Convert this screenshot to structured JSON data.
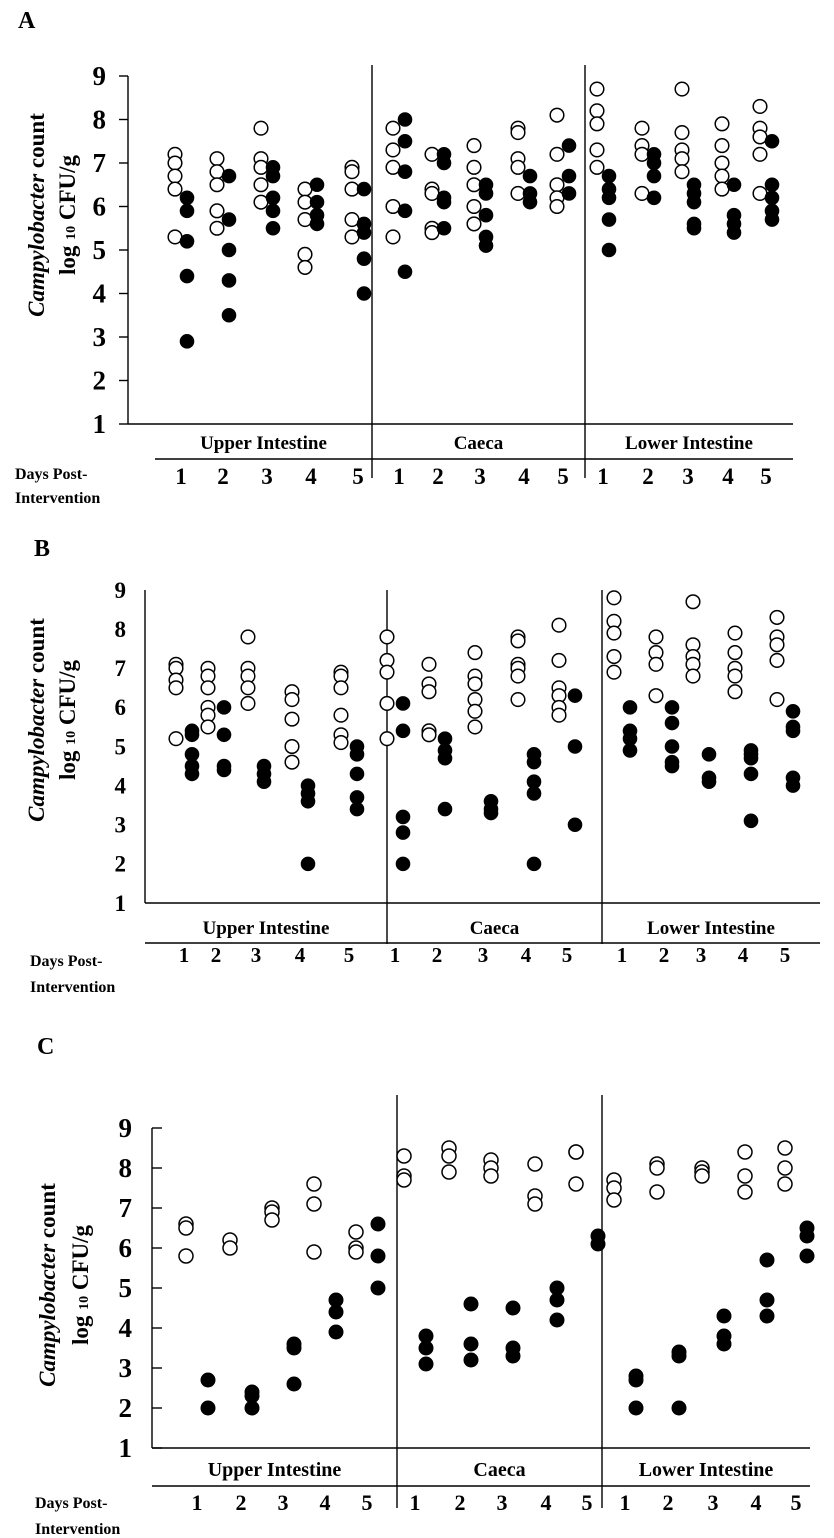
{
  "chart_data": [
    {
      "type": "scatter",
      "panel_label": "A",
      "ylabel_italic": "Campylobacter",
      "ylabel_suffix": " count",
      "ylabel_line2_a": "log",
      "ylabel_line2_sub": "10",
      "ylabel_line2_b": " CFU/g",
      "y_ticks": [
        1,
        2,
        3,
        4,
        5,
        6,
        7,
        8,
        9
      ],
      "ylim": [
        1,
        9
      ],
      "x_title_line1": "Days Post-",
      "x_title_line2": "Intervention",
      "day_labels": [
        "1",
        "2",
        "3",
        "4",
        "5"
      ],
      "groups": [
        {
          "name": "Upper Intestine",
          "days": [
            {
              "open": [
                7.2,
                7.0,
                6.7,
                6.4,
                5.3
              ],
              "filled": [
                6.2,
                5.9,
                5.2,
                4.4,
                2.9
              ]
            },
            {
              "open": [
                7.1,
                6.8,
                6.5,
                5.9,
                5.5
              ],
              "filled": [
                6.7,
                5.7,
                5.0,
                4.3,
                3.5
              ]
            },
            {
              "open": [
                7.8,
                7.1,
                6.9,
                6.5,
                6.1
              ],
              "filled": [
                6.9,
                6.7,
                6.2,
                5.9,
                5.5
              ]
            },
            {
              "open": [
                6.4,
                6.1,
                5.7,
                4.9,
                4.6
              ],
              "filled": [
                6.5,
                6.1,
                5.8,
                5.6
              ]
            },
            {
              "open": [
                6.9,
                6.8,
                6.4,
                5.7,
                5.3
              ],
              "filled": [
                6.4,
                5.6,
                5.4,
                4.8,
                4.0
              ]
            }
          ]
        },
        {
          "name": "Caeca",
          "days": [
            {
              "open": [
                7.8,
                7.3,
                6.9,
                6.0,
                5.3
              ],
              "filled": [
                8.0,
                7.5,
                6.8,
                5.9,
                4.5
              ]
            },
            {
              "open": [
                7.2,
                6.4,
                6.3,
                5.5,
                5.4
              ],
              "filled": [
                7.2,
                7.0,
                6.2,
                6.1,
                5.5
              ]
            },
            {
              "open": [
                7.4,
                6.9,
                6.5,
                6.0,
                5.6
              ],
              "filled": [
                6.5,
                6.3,
                5.8,
                5.3,
                5.1
              ]
            },
            {
              "open": [
                7.8,
                7.7,
                7.1,
                6.9,
                6.3
              ],
              "filled": [
                6.7,
                6.3,
                6.1
              ]
            },
            {
              "open": [
                8.1,
                7.2,
                6.5,
                6.2,
                6.0
              ],
              "filled": [
                7.4,
                6.7,
                6.3
              ]
            }
          ]
        },
        {
          "name": "Lower Intestine",
          "days": [
            {
              "open": [
                8.7,
                8.2,
                7.9,
                7.3,
                6.9
              ],
              "filled": [
                6.7,
                6.4,
                6.2,
                5.7,
                5.0
              ]
            },
            {
              "open": [
                7.8,
                7.4,
                7.2,
                6.3
              ],
              "filled": [
                7.2,
                7.0,
                6.7,
                6.2
              ]
            },
            {
              "open": [
                8.7,
                7.7,
                7.3,
                7.1,
                6.8
              ],
              "filled": [
                6.5,
                6.3,
                6.1,
                5.6,
                5.5
              ]
            },
            {
              "open": [
                7.9,
                7.4,
                7.0,
                6.7,
                6.4
              ],
              "filled": [
                6.5,
                5.8,
                5.6,
                5.4
              ]
            },
            {
              "open": [
                8.3,
                7.8,
                7.6,
                7.2,
                6.3
              ],
              "filled": [
                7.5,
                6.5,
                6.2,
                5.9,
                5.7
              ]
            }
          ]
        }
      ]
    },
    {
      "type": "scatter",
      "panel_label": "B",
      "ylabel_italic": "Campylobacter",
      "ylabel_suffix": " count",
      "ylabel_line2_a": "log",
      "ylabel_line2_sub": "10",
      "ylabel_line2_b": " CFU/g",
      "y_ticks": [
        1,
        2,
        3,
        4,
        5,
        6,
        7,
        8,
        9
      ],
      "ylim": [
        1,
        9
      ],
      "x_title_line1": "Days Post-",
      "x_title_line2": "Intervention",
      "day_labels": [
        "1",
        "2",
        "3",
        "4",
        "5"
      ],
      "groups": [
        {
          "name": "Upper Intestine",
          "days": [
            {
              "open": [
                7.1,
                7.0,
                6.7,
                6.5,
                5.2
              ],
              "filled": [
                5.4,
                5.3,
                4.8,
                4.5,
                4.3
              ]
            },
            {
              "open": [
                7.0,
                6.8,
                6.5,
                6.0,
                5.8,
                5.5
              ],
              "filled": [
                6.0,
                5.3,
                4.5,
                4.4
              ]
            },
            {
              "open": [
                7.8,
                7.0,
                6.8,
                6.5,
                6.1
              ],
              "filled": [
                4.5,
                4.3,
                4.1
              ]
            },
            {
              "open": [
                6.4,
                6.2,
                5.7,
                5.0,
                4.6
              ],
              "filled": [
                4.0,
                3.8,
                3.6,
                2.0
              ]
            },
            {
              "open": [
                6.9,
                6.8,
                6.5,
                5.8,
                5.3,
                5.1
              ],
              "filled": [
                5.0,
                4.8,
                4.3,
                3.7,
                3.4
              ]
            }
          ]
        },
        {
          "name": "Caeca",
          "days": [
            {
              "open": [
                7.8,
                7.2,
                6.9,
                6.1,
                5.2
              ],
              "filled": [
                6.1,
                5.4,
                3.2,
                2.8,
                2.0
              ]
            },
            {
              "open": [
                7.1,
                6.6,
                6.4,
                5.4,
                5.3
              ],
              "filled": [
                5.2,
                4.9,
                4.7,
                3.4
              ]
            },
            {
              "open": [
                7.4,
                6.8,
                6.6,
                6.2,
                5.9,
                5.5
              ],
              "filled": [
                3.6,
                3.4,
                3.3
              ]
            },
            {
              "open": [
                7.8,
                7.7,
                7.1,
                7.0,
                6.8,
                6.2
              ],
              "filled": [
                4.8,
                4.6,
                4.1,
                3.8,
                2.0
              ]
            },
            {
              "open": [
                8.1,
                7.2,
                6.5,
                6.3,
                6.0,
                5.8
              ],
              "filled": [
                6.3,
                5.0,
                3.0
              ]
            }
          ]
        },
        {
          "name": "Lower Intestine",
          "days": [
            {
              "open": [
                8.8,
                8.2,
                7.9,
                7.3,
                6.9
              ],
              "filled": [
                6.0,
                5.4,
                5.2,
                4.9
              ]
            },
            {
              "open": [
                7.8,
                7.4,
                7.1,
                6.3
              ],
              "filled": [
                6.0,
                5.6,
                5.0,
                4.6,
                4.5
              ]
            },
            {
              "open": [
                8.7,
                7.6,
                7.3,
                7.1,
                6.8
              ],
              "filled": [
                4.8,
                4.2,
                4.1
              ]
            },
            {
              "open": [
                7.9,
                7.4,
                7.0,
                6.8,
                6.4
              ],
              "filled": [
                4.9,
                4.8,
                4.7,
                4.3,
                3.1
              ]
            },
            {
              "open": [
                8.3,
                7.8,
                7.6,
                7.2,
                6.2
              ],
              "filled": [
                5.9,
                5.5,
                5.4,
                4.2,
                4.0
              ]
            }
          ]
        }
      ]
    },
    {
      "type": "scatter",
      "panel_label": "C",
      "ylabel_italic": "Campylobacter",
      "ylabel_suffix": " count",
      "ylabel_line2_a": "log",
      "ylabel_line2_sub": "10",
      "ylabel_line2_b": " CFU/g",
      "y_ticks": [
        1,
        2,
        3,
        4,
        5,
        6,
        7,
        8,
        9
      ],
      "ylim": [
        1,
        9
      ],
      "x_title_line1": "Days Post-",
      "x_title_line2": "Intervention",
      "day_labels": [
        "1",
        "2",
        "3",
        "4",
        "5"
      ],
      "groups": [
        {
          "name": "Upper Intestine",
          "days": [
            {
              "open": [
                6.6,
                6.5,
                5.8
              ],
              "filled": [
                2.7,
                2.0
              ]
            },
            {
              "open": [
                6.2,
                6.0
              ],
              "filled": [
                2.4,
                2.3,
                2.0
              ]
            },
            {
              "open": [
                7.0,
                6.9,
                6.7
              ],
              "filled": [
                3.6,
                3.5,
                2.6
              ]
            },
            {
              "open": [
                7.6,
                7.1,
                5.9
              ],
              "filled": [
                4.7,
                4.4,
                3.9
              ]
            },
            {
              "open": [
                6.4,
                6.0,
                5.9
              ],
              "filled": [
                6.6,
                5.8,
                5.0
              ]
            }
          ]
        },
        {
          "name": "Caeca",
          "days": [
            {
              "open": [
                8.3,
                7.8,
                7.7
              ],
              "filled": [
                3.8,
                3.5,
                3.1
              ]
            },
            {
              "open": [
                8.5,
                8.3,
                7.9
              ],
              "filled": [
                4.6,
                3.6,
                3.2
              ]
            },
            {
              "open": [
                8.2,
                8.0,
                7.8
              ],
              "filled": [
                4.5,
                3.5,
                3.3
              ]
            },
            {
              "open": [
                8.1,
                7.3,
                7.1
              ],
              "filled": [
                5.0,
                4.7,
                4.2
              ]
            },
            {
              "open": [
                8.4,
                8.4,
                7.6
              ],
              "filled": [
                6.3,
                6.1
              ]
            }
          ]
        },
        {
          "name": "Lower Intestine",
          "days": [
            {
              "open": [
                7.7,
                7.5,
                7.2
              ],
              "filled": [
                2.8,
                2.7,
                2.0
              ]
            },
            {
              "open": [
                8.1,
                8.0,
                7.4
              ],
              "filled": [
                3.4,
                3.3,
                2.0
              ]
            },
            {
              "open": [
                8.0,
                7.9,
                7.8
              ],
              "filled": [
                4.3,
                3.8,
                3.6
              ]
            },
            {
              "open": [
                8.4,
                7.8,
                7.4
              ],
              "filled": [
                5.7,
                4.7,
                4.3
              ]
            },
            {
              "open": [
                8.5,
                8.0,
                7.6
              ],
              "filled": [
                6.5,
                6.3,
                5.8
              ]
            }
          ]
        }
      ]
    }
  ]
}
